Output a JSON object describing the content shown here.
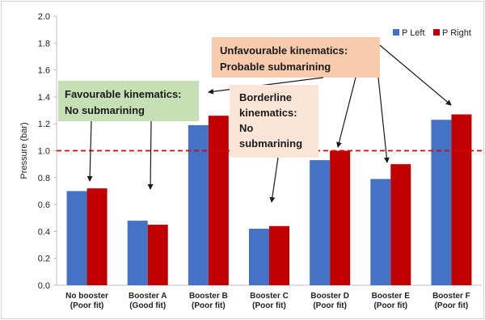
{
  "chart_data": {
    "type": "bar",
    "categories": [
      [
        "No booster",
        "(Poor fit)"
      ],
      [
        "Booster A",
        "(Good fit)"
      ],
      [
        "Booster B",
        "(Poor fit)"
      ],
      [
        "Booster C",
        "(Poor fit)"
      ],
      [
        "Booster D",
        "(Poor fit)"
      ],
      [
        "Booster E",
        "(Poor fit)"
      ],
      [
        "Booster F",
        "(Poor fit)"
      ]
    ],
    "series": [
      {
        "name": "P Left",
        "color": "#4472C4",
        "values": [
          0.7,
          0.48,
          1.19,
          0.42,
          0.93,
          0.79,
          1.23
        ]
      },
      {
        "name": "P Right",
        "color": "#C00000",
        "values": [
          0.72,
          0.45,
          1.26,
          0.44,
          1.0,
          0.9,
          1.27
        ]
      }
    ],
    "ylabel": "Pressure (bar)",
    "ylim": [
      0.0,
      2.0
    ],
    "yticks": [
      "0.0",
      "0.2",
      "0.4",
      "0.6",
      "0.8",
      "1.0",
      "1.2",
      "1.4",
      "1.6",
      "1.8",
      "2.0"
    ],
    "grid": false,
    "legend_position": "top-right",
    "threshold": {
      "value": 1.0,
      "color": "#E00000",
      "style": "dashed"
    },
    "annotations": [
      {
        "lines": [
          "Favourable kinematics:",
          "No submarining"
        ],
        "color": "#C5E0B4",
        "targets": [
          0,
          1
        ]
      },
      {
        "lines": [
          "Unfavourable kinematics:",
          "Probable submarining"
        ],
        "color": "#F8CBAD",
        "targets": [
          2,
          4,
          5,
          6
        ]
      },
      {
        "lines": [
          "Borderline",
          "kinematics:",
          "No",
          "submarining"
        ],
        "color": "#FBE5D6",
        "targets": [
          3
        ]
      }
    ]
  }
}
